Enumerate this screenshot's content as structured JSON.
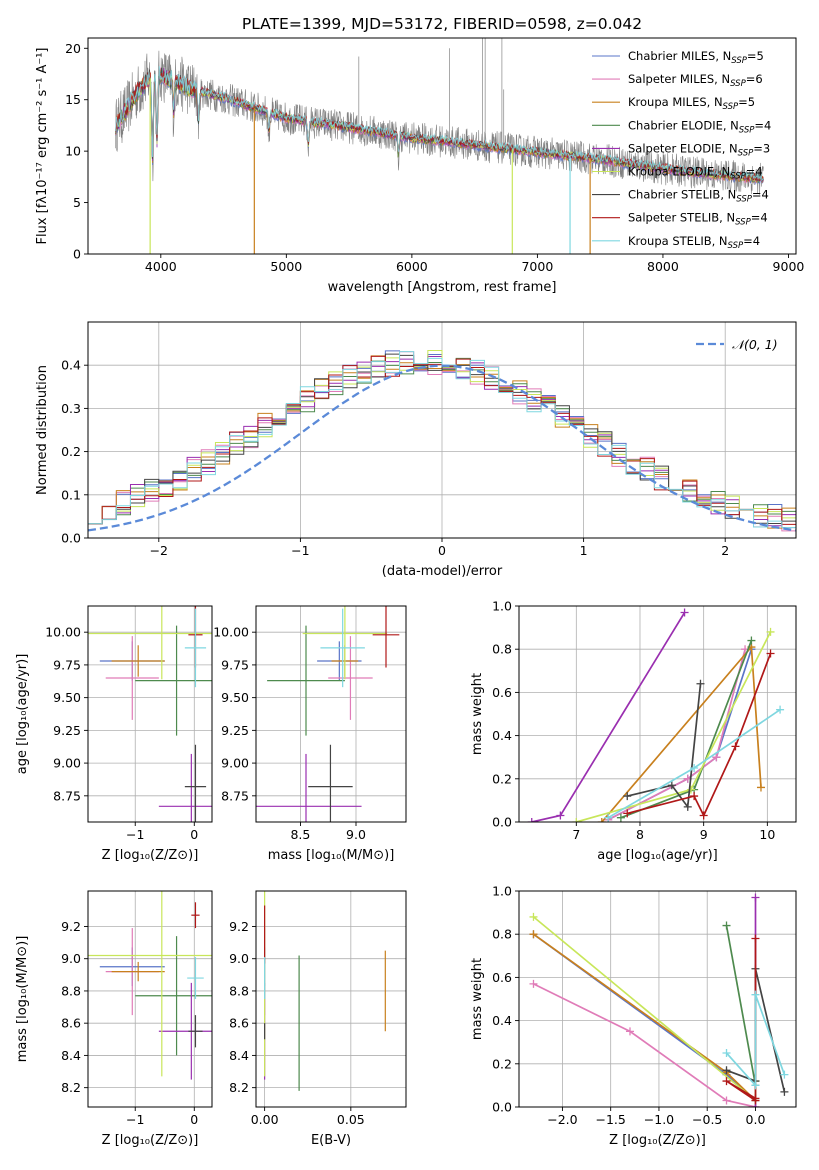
{
  "figure": {
    "title": "PLATE=1399, MJD=53172, FIBERID=0598, z=0.042"
  },
  "models": [
    {
      "name": "Chabrier MILES",
      "nssp": "5",
      "color": "#5a74c8"
    },
    {
      "name": "Salpeter MILES",
      "nssp": "6",
      "color": "#e07cb8"
    },
    {
      "name": "Kroupa MILES",
      "nssp": "5",
      "color": "#c8801e"
    },
    {
      "name": "Chabrier ELODIE",
      "nssp": "4",
      "color": "#4e8a4e"
    },
    {
      "name": "Salpeter ELODIE",
      "nssp": "3",
      "color": "#9a2fb0"
    },
    {
      "name": "Kroupa ELODIE",
      "nssp": "4",
      "color": "#c8e65a"
    },
    {
      "name": "Chabrier STELIB",
      "nssp": "4",
      "color": "#444444"
    },
    {
      "name": "Salpeter STELIB",
      "nssp": "4",
      "color": "#b01818"
    },
    {
      "name": "Kroupa STELIB",
      "nssp": "4",
      "color": "#7fd7e0"
    }
  ],
  "chart_data": [
    {
      "id": "spectrum",
      "type": "line",
      "title": "PLATE=1399, MJD=53172, FIBERID=0598, z=0.042",
      "xlabel": "wavelength [Angstrom, rest frame]",
      "ylabel": "Flux [fλ10⁻¹⁷ erg cm⁻² s⁻¹ A⁻¹]",
      "xlim": [
        3420,
        9060
      ],
      "ylim": [
        0,
        21
      ],
      "xticks": [
        "4000",
        "5000",
        "6000",
        "7000",
        "8000",
        "9000"
      ],
      "yticks": [
        "0",
        "5",
        "10",
        "15",
        "20"
      ],
      "legend": "top-right",
      "continuum": {
        "x": [
          3640,
          3700,
          3800,
          3900,
          4000,
          4100,
          4200,
          4300,
          4500,
          4800,
          5000,
          5500,
          6000,
          6500,
          7000,
          7500,
          8000,
          8500,
          8800
        ],
        "y": [
          12.5,
          13.5,
          15.5,
          17.0,
          17.5,
          16.8,
          16.3,
          15.8,
          15.2,
          14.0,
          13.2,
          12.3,
          11.3,
          10.6,
          9.9,
          9.2,
          8.3,
          7.6,
          7.3
        ]
      },
      "absorption_features": [
        {
          "x": 3934,
          "depth": 8.5
        },
        {
          "x": 3969,
          "depth": 7.0
        },
        {
          "x": 4102,
          "depth": 3.0
        },
        {
          "x": 4300,
          "depth": 3.2
        },
        {
          "x": 4861,
          "depth": 2.0
        },
        {
          "x": 5175,
          "depth": 2.5
        },
        {
          "x": 5893,
          "depth": 2.2
        }
      ],
      "sky_lines": [
        {
          "x": 5577,
          "peak": 19.2
        },
        {
          "x": 6300,
          "peak": 20.0
        },
        {
          "x": 6563,
          "peak": 21.0
        },
        {
          "x": 6584,
          "peak": 21.0
        },
        {
          "x": 6717,
          "peak": 21.0
        },
        {
          "x": 6731,
          "peak": 16.0
        }
      ],
      "model_dropouts": [
        {
          "x": 3915,
          "model": 5
        },
        {
          "x": 4745,
          "model": 2
        },
        {
          "x": 6800,
          "model": 5
        },
        {
          "x": 7260,
          "model": 8
        },
        {
          "x": 7420,
          "model": 2
        }
      ]
    },
    {
      "id": "residual-histogram",
      "type": "histogram",
      "xlabel": "(data-model)/error",
      "ylabel": "Normed distribution",
      "xlim": [
        -2.5,
        2.5
      ],
      "ylim": [
        0,
        0.5
      ],
      "xticks": [
        "−2",
        "−1",
        "0",
        "1",
        "2"
      ],
      "yticks": [
        "0.0",
        "0.1",
        "0.2",
        "0.3",
        "0.4"
      ],
      "bin_width": 0.1,
      "legend": "top-right",
      "reference_curve": {
        "label": "𝒩(0, 1)",
        "mean": 0,
        "sigma": 1,
        "color": "#5b8ad8"
      }
    },
    {
      "id": "age-vs-z",
      "type": "scatter",
      "xlabel": "Z [log₁₀(Z/Z⊙)]",
      "ylabel": "age  [log₁₀(age/yr)]",
      "xlim": [
        -1.8,
        0.3
      ],
      "ylim": [
        8.55,
        10.2
      ],
      "xticks": [
        "−1",
        "0"
      ],
      "yticks": [
        "8.75",
        "9.00",
        "9.25",
        "9.50",
        "9.75",
        "10.00"
      ],
      "points": [
        {
          "model": 0,
          "x": -1.05,
          "y": 9.78,
          "xerr": 0.55,
          "yerr": 0.15
        },
        {
          "model": 1,
          "x": -1.05,
          "y": 9.65,
          "xerr": 0.45,
          "yerr": 0.32
        },
        {
          "model": 2,
          "x": -0.95,
          "y": 9.78,
          "xerr": 0.45,
          "yerr": 0.12
        },
        {
          "model": 3,
          "x": -0.3,
          "y": 9.63,
          "xerr": 0.7,
          "yerr": 0.42
        },
        {
          "model": 4,
          "x": -0.05,
          "y": 8.67,
          "xerr": 0.55,
          "yerr": 0.4
        },
        {
          "model": 5,
          "x": -0.55,
          "y": 9.99,
          "xerr": 1.3,
          "yerr": 0.35
        },
        {
          "model": 6,
          "x": 0.02,
          "y": 8.82,
          "xerr": 0.18,
          "yerr": 0.32
        },
        {
          "model": 7,
          "x": 0.02,
          "y": 9.98,
          "xerr": 0.12,
          "yerr": 0.25
        },
        {
          "model": 8,
          "x": 0.02,
          "y": 9.88,
          "xerr": 0.18,
          "yerr": 0.3
        }
      ]
    },
    {
      "id": "age-vs-mass",
      "type": "scatter",
      "xlabel": "mass [log₁₀(M/M⊙)]",
      "ylabel": "",
      "xlim": [
        8.1,
        9.45
      ],
      "ylim": [
        8.55,
        10.2
      ],
      "xticks": [
        "8.5",
        "9.0"
      ],
      "yticks": [
        "8.75",
        "9.00",
        "9.25",
        "9.50",
        "9.75",
        "10.00"
      ],
      "points": [
        {
          "model": 0,
          "x": 8.85,
          "y": 9.78,
          "xerr": 0.2,
          "yerr": 0.15
        },
        {
          "model": 1,
          "x": 8.95,
          "y": 9.65,
          "xerr": 0.2,
          "yerr": 0.32
        },
        {
          "model": 2,
          "x": 8.9,
          "y": 9.78,
          "xerr": 0.12,
          "yerr": 0.12
        },
        {
          "model": 3,
          "x": 8.55,
          "y": 9.63,
          "xerr": 0.35,
          "yerr": 0.42
        },
        {
          "model": 4,
          "x": 8.55,
          "y": 8.67,
          "xerr": 0.5,
          "yerr": 0.4
        },
        {
          "model": 5,
          "x": 8.9,
          "y": 9.99,
          "xerr": 0.38,
          "yerr": 0.35
        },
        {
          "model": 6,
          "x": 8.77,
          "y": 8.82,
          "xerr": 0.2,
          "yerr": 0.32
        },
        {
          "model": 7,
          "x": 9.27,
          "y": 9.98,
          "xerr": 0.12,
          "yerr": 0.25
        },
        {
          "model": 8,
          "x": 8.88,
          "y": 9.88,
          "xerr": 0.2,
          "yerr": 0.3
        }
      ]
    },
    {
      "id": "weight-vs-age",
      "type": "line",
      "xlabel": "age  [log₁₀(age/yr)]",
      "ylabel": "mass weight",
      "xlim": [
        6.1,
        10.45
      ],
      "ylim": [
        0,
        1
      ],
      "xticks": [
        "7",
        "8",
        "9",
        "10"
      ],
      "yticks": [
        "0.0",
        "0.2",
        "0.4",
        "0.6",
        "0.8",
        "1.0"
      ],
      "series": [
        {
          "model": 0,
          "x": [
            7.5,
            8.75,
            9.2,
            9.75
          ],
          "y": [
            0.01,
            0.2,
            0.3,
            0.8
          ]
        },
        {
          "model": 1,
          "x": [
            7.5,
            8.75,
            9.2,
            9.65
          ],
          "y": [
            0.01,
            0.2,
            0.3,
            0.8
          ]
        },
        {
          "model": 2,
          "x": [
            7.4,
            9.75,
            9.9
          ],
          "y": [
            0.0,
            0.81,
            0.16
          ]
        },
        {
          "model": 3,
          "x": [
            7.7,
            8.85,
            9.75
          ],
          "y": [
            0.02,
            0.15,
            0.84
          ]
        },
        {
          "model": 4,
          "x": [
            6.3,
            6.75,
            8.7
          ],
          "y": [
            0.0,
            0.03,
            0.97
          ]
        },
        {
          "model": 5,
          "x": [
            7.0,
            8.8,
            10.05
          ],
          "y": [
            0.0,
            0.15,
            0.88
          ]
        },
        {
          "model": 6,
          "x": [
            7.8,
            8.5,
            8.75,
            8.95
          ],
          "y": [
            0.12,
            0.17,
            0.07,
            0.64
          ]
        },
        {
          "model": 7,
          "x": [
            7.8,
            8.85,
            9.0,
            9.5,
            10.05
          ],
          "y": [
            0.04,
            0.12,
            0.03,
            0.35,
            0.78
          ]
        },
        {
          "model": 8,
          "x": [
            7.5,
            8.85,
            10.2
          ],
          "y": [
            0.02,
            0.25,
            0.52
          ]
        }
      ]
    },
    {
      "id": "mass-vs-z",
      "type": "scatter",
      "xlabel": "Z [log₁₀(Z/Z⊙)]",
      "ylabel": "mass [log₁₀(M/M⊙)]",
      "xlim": [
        -1.8,
        0.3
      ],
      "ylim": [
        8.08,
        9.42
      ],
      "xticks": [
        "−1",
        "0"
      ],
      "yticks": [
        "8.2",
        "8.4",
        "8.6",
        "8.8",
        "9.0",
        "9.2"
      ],
      "points": [
        {
          "model": 0,
          "x": -1.05,
          "y": 8.95,
          "xerr": 0.55,
          "yerr": 0.12
        },
        {
          "model": 1,
          "x": -1.05,
          "y": 8.92,
          "xerr": 0.45,
          "yerr": 0.27
        },
        {
          "model": 2,
          "x": -0.95,
          "y": 8.92,
          "xerr": 0.45,
          "yerr": 0.06
        },
        {
          "model": 3,
          "x": -0.3,
          "y": 8.77,
          "xerr": 0.7,
          "yerr": 0.37
        },
        {
          "model": 4,
          "x": -0.05,
          "y": 8.55,
          "xerr": 0.55,
          "yerr": 0.3
        },
        {
          "model": 5,
          "x": -0.55,
          "y": 9.02,
          "xerr": 1.3,
          "yerr": 0.75
        },
        {
          "model": 6,
          "x": 0.02,
          "y": 8.55,
          "xerr": 0.12,
          "yerr": 0.1
        },
        {
          "model": 7,
          "x": 0.02,
          "y": 9.27,
          "xerr": 0.07,
          "yerr": 0.08
        },
        {
          "model": 8,
          "x": 0.02,
          "y": 8.88,
          "xerr": 0.14,
          "yerr": 0.13
        }
      ]
    },
    {
      "id": "mass-vs-ebv",
      "type": "scatter",
      "xlabel": "E(B-V)",
      "ylabel": "",
      "xlim": [
        -0.005,
        0.082
      ],
      "ylim": [
        8.08,
        9.42
      ],
      "xticks": [
        "0.00",
        "0.05"
      ],
      "yticks": [
        "8.2",
        "8.4",
        "8.6",
        "8.8",
        "9.0",
        "9.2"
      ],
      "points": [
        {
          "model": 0,
          "x": 0.0,
          "y": 8.95,
          "xerr": 0,
          "yerr": 0.12
        },
        {
          "model": 1,
          "x": 0.0,
          "y": 8.92,
          "xerr": 0,
          "yerr": 0.27
        },
        {
          "model": 2,
          "x": 0.07,
          "y": 8.8,
          "xerr": 0,
          "yerr": 0.25
        },
        {
          "model": 3,
          "x": 0.02,
          "y": 8.6,
          "xerr": 0,
          "yerr": 0.42
        },
        {
          "model": 4,
          "x": 0.0,
          "y": 8.55,
          "xerr": 0,
          "yerr": 0.3
        },
        {
          "model": 5,
          "x": 0.0,
          "y": 9.02,
          "xerr": 0,
          "yerr": 0.75
        },
        {
          "model": 6,
          "x": 0.0,
          "y": 8.55,
          "xerr": 0,
          "yerr": 0.05
        },
        {
          "model": 7,
          "x": 0.0,
          "y": 9.15,
          "xerr": 0,
          "yerr": 0.18
        },
        {
          "model": 8,
          "x": 0.0,
          "y": 8.88,
          "xerr": 0,
          "yerr": 0.13
        }
      ]
    },
    {
      "id": "weight-vs-z",
      "type": "line",
      "xlabel": "Z [log₁₀(Z/Z⊙)]",
      "ylabel": "mass weight",
      "xlim": [
        -2.45,
        0.42
      ],
      "ylim": [
        0,
        1
      ],
      "xticks": [
        "−2.0",
        "−1.5",
        "−1.0",
        "−0.5",
        "0.0"
      ],
      "yticks": [
        "0.0",
        "0.2",
        "0.4",
        "0.6",
        "0.8",
        "1.0"
      ],
      "series": [
        {
          "model": 0,
          "x": [
            -2.3,
            -0.3,
            0.0
          ],
          "y": [
            0.8,
            0.15,
            0.03
          ]
        },
        {
          "model": 1,
          "x": [
            -2.3,
            -1.3,
            -0.3,
            0.0
          ],
          "y": [
            0.57,
            0.35,
            0.03,
            0.0
          ]
        },
        {
          "model": 2,
          "x": [
            -2.3,
            -0.3,
            0.0
          ],
          "y": [
            0.8,
            0.16,
            0.03
          ]
        },
        {
          "model": 3,
          "x": [
            -0.3,
            0.0
          ],
          "y": [
            0.84,
            0.1
          ]
        },
        {
          "model": 4,
          "x": [
            0.0,
            0.0,
            0.0
          ],
          "y": [
            0.97,
            0.03,
            0.0
          ]
        },
        {
          "model": 5,
          "x": [
            -2.3,
            0.0,
            0.0
          ],
          "y": [
            0.88,
            0.03,
            0.12
          ]
        },
        {
          "model": 6,
          "x": [
            -0.3,
            0.0,
            0.0,
            0.3
          ],
          "y": [
            0.17,
            0.12,
            0.64,
            0.07
          ]
        },
        {
          "model": 7,
          "x": [
            0.0,
            0.0,
            -0.3,
            0.0
          ],
          "y": [
            0.78,
            0.03,
            0.12,
            0.04
          ]
        },
        {
          "model": 8,
          "x": [
            -0.3,
            0.0,
            0.0,
            0.3
          ],
          "y": [
            0.25,
            0.1,
            0.52,
            0.15
          ]
        }
      ]
    }
  ]
}
